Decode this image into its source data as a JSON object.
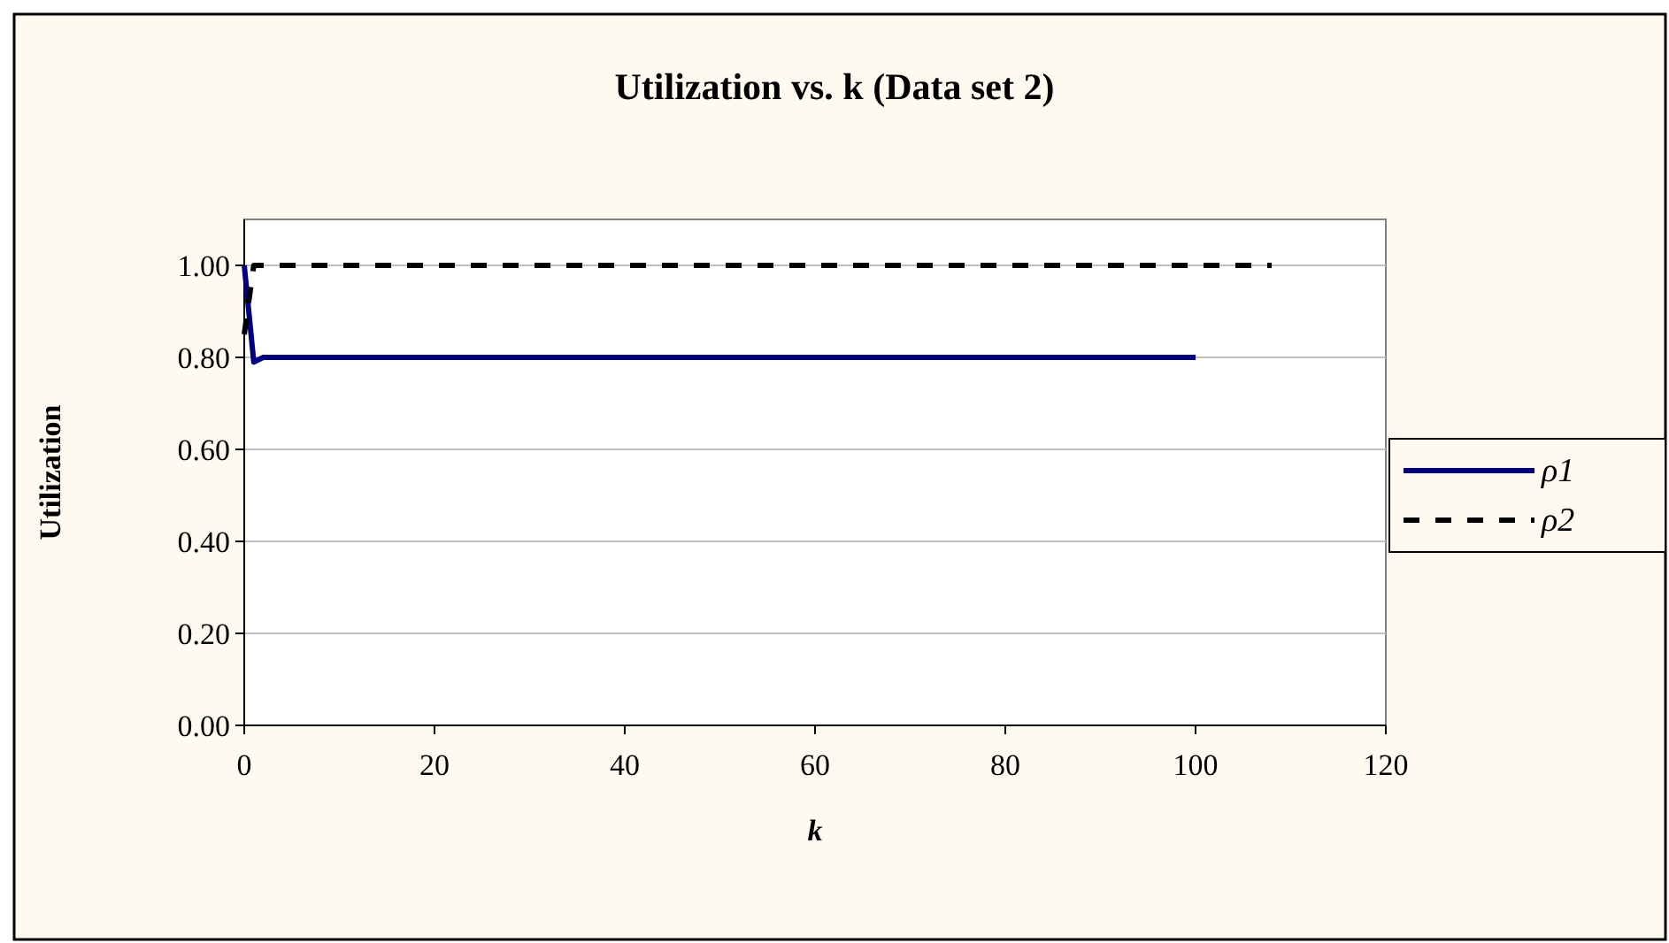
{
  "chart_data": {
    "type": "line",
    "title": "Utilization vs. k  (Data set 2)",
    "xlabel": "k",
    "ylabel": "Utilization",
    "xlim": [
      0,
      120
    ],
    "xticks": [
      0,
      20,
      40,
      60,
      80,
      100,
      120
    ],
    "ylim": [
      0,
      1.1
    ],
    "yticks": [
      {
        "value": 0,
        "label": "0.00"
      },
      {
        "value": 0.2,
        "label": "0.20"
      },
      {
        "value": 0.4,
        "label": "0.40"
      },
      {
        "value": 0.6,
        "label": "0.60"
      },
      {
        "value": 0.8,
        "label": "0.80"
      },
      {
        "value": 1,
        "label": "1.00"
      }
    ],
    "grid": "y",
    "legend": "right",
    "series": [
      {
        "name": "ρ1",
        "color": "#000080",
        "line_style": "solid",
        "x": [
          0,
          1,
          2,
          100
        ],
        "values": [
          1.0,
          0.79,
          0.8,
          0.8
        ]
      },
      {
        "name": "ρ2",
        "color": "#000000",
        "line_style": "dashed",
        "x": [
          0,
          1,
          2,
          108
        ],
        "values": [
          0.85,
          1.0,
          1.0,
          1.0
        ]
      }
    ]
  }
}
